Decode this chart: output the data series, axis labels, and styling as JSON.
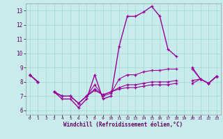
{
  "xlabel": "Windchill (Refroidissement éolien,°C)",
  "bg_color": "#c8ecec",
  "grid_color": "#aadddd",
  "line_color": "#990099",
  "xlim": [
    -0.5,
    23.5
  ],
  "ylim": [
    5.7,
    13.5
  ],
  "yticks": [
    6,
    7,
    8,
    9,
    10,
    11,
    12,
    13
  ],
  "xticks": [
    0,
    1,
    2,
    3,
    4,
    5,
    6,
    7,
    8,
    9,
    10,
    11,
    12,
    13,
    14,
    15,
    16,
    17,
    18,
    19,
    20,
    21,
    22,
    23
  ],
  "series1": [
    8.5,
    8.0,
    null,
    7.3,
    6.8,
    6.8,
    6.2,
    6.8,
    8.5,
    6.8,
    7.0,
    10.5,
    12.6,
    12.6,
    12.9,
    13.3,
    12.6,
    10.3,
    9.8,
    null,
    9.0,
    8.2,
    7.9,
    8.4
  ],
  "series2": [
    8.5,
    8.0,
    null,
    7.3,
    7.0,
    7.0,
    6.5,
    7.0,
    7.8,
    7.0,
    7.2,
    8.2,
    8.5,
    8.5,
    8.7,
    8.8,
    8.8,
    8.9,
    8.9,
    null,
    8.9,
    8.2,
    7.9,
    8.4
  ],
  "series3": [
    8.5,
    8.0,
    null,
    7.3,
    7.0,
    7.0,
    6.5,
    7.0,
    7.5,
    7.1,
    7.3,
    7.6,
    7.8,
    7.8,
    7.9,
    8.0,
    8.0,
    8.0,
    8.1,
    null,
    8.1,
    8.2,
    7.9,
    8.4
  ],
  "series4": [
    8.5,
    8.0,
    null,
    7.3,
    7.0,
    7.0,
    6.5,
    7.0,
    7.4,
    7.1,
    7.3,
    7.5,
    7.6,
    7.6,
    7.7,
    7.8,
    7.8,
    7.8,
    7.9,
    null,
    7.9,
    8.2,
    7.9,
    8.4
  ]
}
